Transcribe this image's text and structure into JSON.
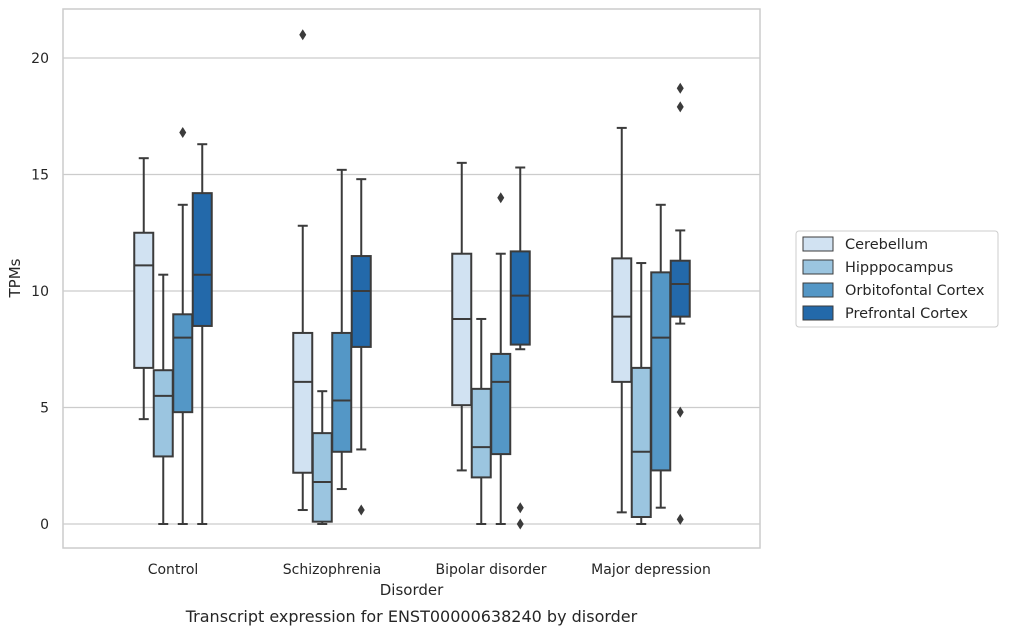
{
  "chart_data": {
    "type": "box",
    "title": "",
    "caption": "Transcript expression for ENST00000638240 by disorder",
    "xlabel": "Disorder",
    "ylabel": "TPMs",
    "ylim": [
      -1,
      22.1
    ],
    "yticks": [
      0,
      5,
      10,
      15,
      20
    ],
    "grid": "horizontal",
    "legend_position": "right",
    "categories": [
      "Control",
      "Schizophrenia",
      "Bipolar disorder",
      "Major depression"
    ],
    "series": [
      {
        "name": "Cerebellum",
        "color": "#d1e2f2",
        "boxes": [
          {
            "whisker_low": 4.5,
            "q1": 6.7,
            "median": 11.1,
            "q3": 12.5,
            "whisker_high": 15.7,
            "outliers": []
          },
          {
            "whisker_low": 0.6,
            "q1": 2.2,
            "median": 6.1,
            "q3": 8.2,
            "whisker_high": 12.8,
            "outliers": [
              21.0
            ]
          },
          {
            "whisker_low": 2.3,
            "q1": 5.1,
            "median": 8.8,
            "q3": 11.6,
            "whisker_high": 15.5,
            "outliers": []
          },
          {
            "whisker_low": 0.5,
            "q1": 6.1,
            "median": 8.9,
            "q3": 11.4,
            "whisker_high": 17.0,
            "outliers": []
          }
        ]
      },
      {
        "name": "Hipppocampus",
        "color": "#9bc5e0",
        "boxes": [
          {
            "whisker_low": 0.0,
            "q1": 2.9,
            "median": 5.5,
            "q3": 6.6,
            "whisker_high": 10.7,
            "outliers": []
          },
          {
            "whisker_low": 0.0,
            "q1": 0.1,
            "median": 1.8,
            "q3": 3.9,
            "whisker_high": 5.7,
            "outliers": []
          },
          {
            "whisker_low": 0.0,
            "q1": 2.0,
            "median": 3.3,
            "q3": 5.8,
            "whisker_high": 8.8,
            "outliers": []
          },
          {
            "whisker_low": 0.0,
            "q1": 0.3,
            "median": 3.1,
            "q3": 6.7,
            "whisker_high": 11.2,
            "outliers": []
          }
        ]
      },
      {
        "name": "Orbitofontal Cortex",
        "color": "#5497c6",
        "boxes": [
          {
            "whisker_low": 0.0,
            "q1": 4.8,
            "median": 8.0,
            "q3": 9.0,
            "whisker_high": 13.7,
            "outliers": [
              16.8
            ]
          },
          {
            "whisker_low": 1.5,
            "q1": 3.1,
            "median": 5.3,
            "q3": 8.2,
            "whisker_high": 15.2,
            "outliers": []
          },
          {
            "whisker_low": 0.0,
            "q1": 3.0,
            "median": 6.1,
            "q3": 7.3,
            "whisker_high": 11.6,
            "outliers": [
              14.0
            ]
          },
          {
            "whisker_low": 0.7,
            "q1": 2.3,
            "median": 8.0,
            "q3": 10.8,
            "whisker_high": 13.7,
            "outliers": []
          }
        ]
      },
      {
        "name": "Prefrontal Cortex",
        "color": "#2369aa",
        "boxes": [
          {
            "whisker_low": 0.0,
            "q1": 8.5,
            "median": 10.7,
            "q3": 14.2,
            "whisker_high": 16.3,
            "outliers": []
          },
          {
            "whisker_low": 3.2,
            "q1": 7.6,
            "median": 10.0,
            "q3": 11.5,
            "whisker_high": 14.8,
            "outliers": [
              0.6
            ]
          },
          {
            "whisker_low": 7.5,
            "q1": 7.7,
            "median": 9.8,
            "q3": 11.7,
            "whisker_high": 15.3,
            "outliers": [
              0.0,
              0.7
            ]
          },
          {
            "whisker_low": 8.6,
            "q1": 8.9,
            "median": 10.3,
            "q3": 11.3,
            "whisker_high": 12.6,
            "outliers": [
              0.2,
              4.8,
              17.9,
              18.7
            ]
          }
        ]
      }
    ]
  }
}
